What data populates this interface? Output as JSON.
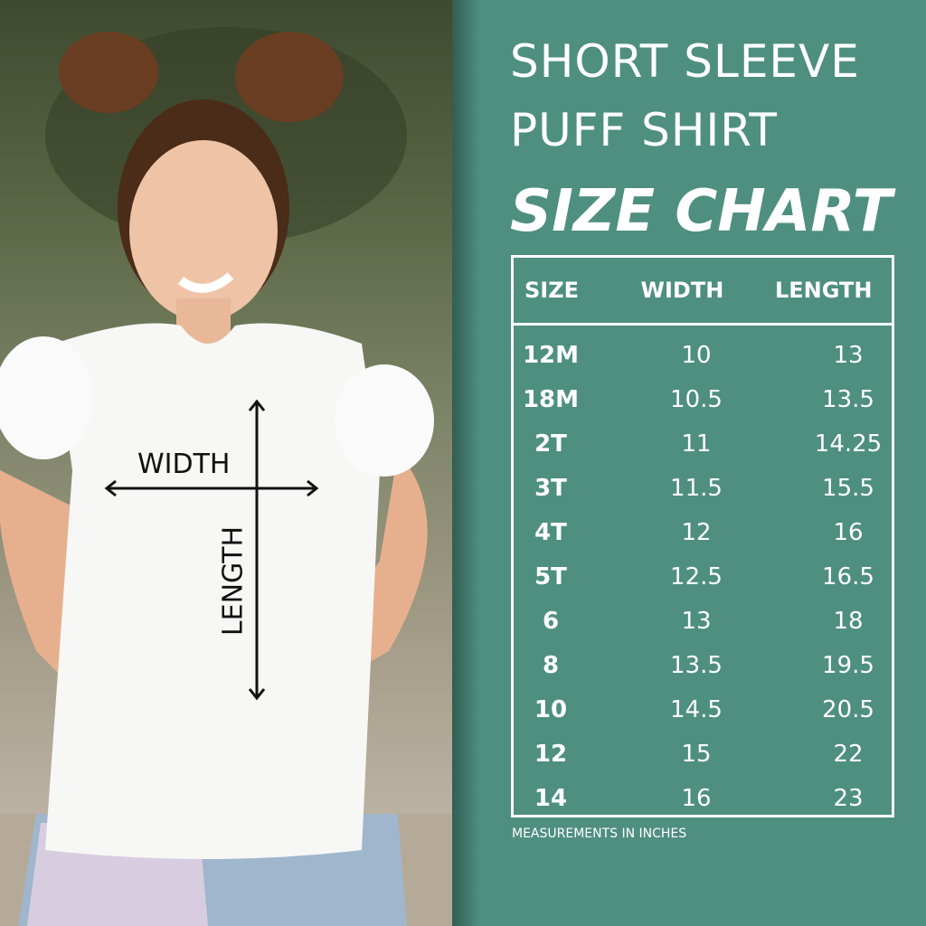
{
  "title": {
    "line1": "SHORT SLEEVE",
    "line2": "PUFF SHIRT",
    "line3": "SIZE CHART"
  },
  "diagram": {
    "width_label": "WIDTH",
    "length_label": "LENGTH"
  },
  "table": {
    "headers": [
      "SIZE",
      "WIDTH",
      "LENGTH"
    ],
    "rows": [
      [
        "12M",
        "10",
        "13"
      ],
      [
        "18M",
        "10.5",
        "13.5"
      ],
      [
        "2T",
        "11",
        "14.25"
      ],
      [
        "3T",
        "11.5",
        "15.5"
      ],
      [
        "4T",
        "12",
        "16"
      ],
      [
        "5T",
        "12.5",
        "16.5"
      ],
      [
        "6",
        "13",
        "18"
      ],
      [
        "8",
        "13.5",
        "19.5"
      ],
      [
        "10",
        "14.5",
        "20.5"
      ],
      [
        "12",
        "15",
        "22"
      ],
      [
        "14",
        "16",
        "23"
      ]
    ]
  },
  "note": "MEASUREMENTS IN INCHES",
  "colors": {
    "panel": "#4e8f80",
    "text": "#ffffff"
  }
}
